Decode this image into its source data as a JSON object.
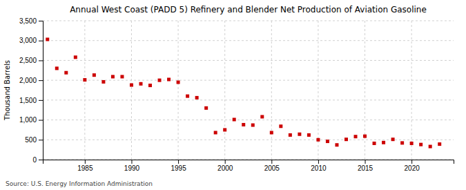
{
  "chart_data": {
    "type": "scatter",
    "title": "Annual West Coast (PADD 5) Refinery and Blender Net Production of Aviation Gasoline",
    "ylabel": "Thousand Barrels",
    "source": "Source: U.S. Energy Information Administration",
    "color": "#cc0000",
    "marker": "square",
    "grid": true,
    "x": [
      1981,
      1982,
      1983,
      1984,
      1985,
      1986,
      1987,
      1988,
      1989,
      1990,
      1991,
      1992,
      1993,
      1994,
      1995,
      1996,
      1997,
      1998,
      1999,
      2000,
      2001,
      2002,
      2003,
      2004,
      2005,
      2006,
      2007,
      2008,
      2009,
      2010,
      2011,
      2012,
      2013,
      2014,
      2015,
      2016,
      2017,
      2018,
      2019,
      2020,
      2021,
      2022,
      2023
    ],
    "values": [
      3030,
      2300,
      2190,
      2580,
      2010,
      2130,
      1960,
      2090,
      2090,
      1880,
      1910,
      1870,
      2000,
      2020,
      1950,
      1600,
      1560,
      1300,
      680,
      750,
      1010,
      880,
      870,
      1080,
      680,
      840,
      620,
      640,
      620,
      500,
      460,
      370,
      510,
      580,
      590,
      410,
      430,
      510,
      420,
      410,
      380,
      330,
      390
    ],
    "xlim": [
      1980.5,
      2024.5
    ],
    "xticks": [
      1985,
      1990,
      1995,
      2000,
      2005,
      2010,
      2015,
      2020
    ],
    "ylim": [
      0,
      3500
    ],
    "yticks": [
      0,
      500,
      {
        "value": 1000,
        "label": "1,000"
      },
      {
        "value": 1500,
        "label": "1,500"
      },
      {
        "value": 2000,
        "label": "2,000"
      },
      {
        "value": 2500,
        "label": "2,500"
      },
      {
        "value": 3000,
        "label": "3,000"
      },
      {
        "value": 3500,
        "label": "3,500"
      }
    ]
  }
}
